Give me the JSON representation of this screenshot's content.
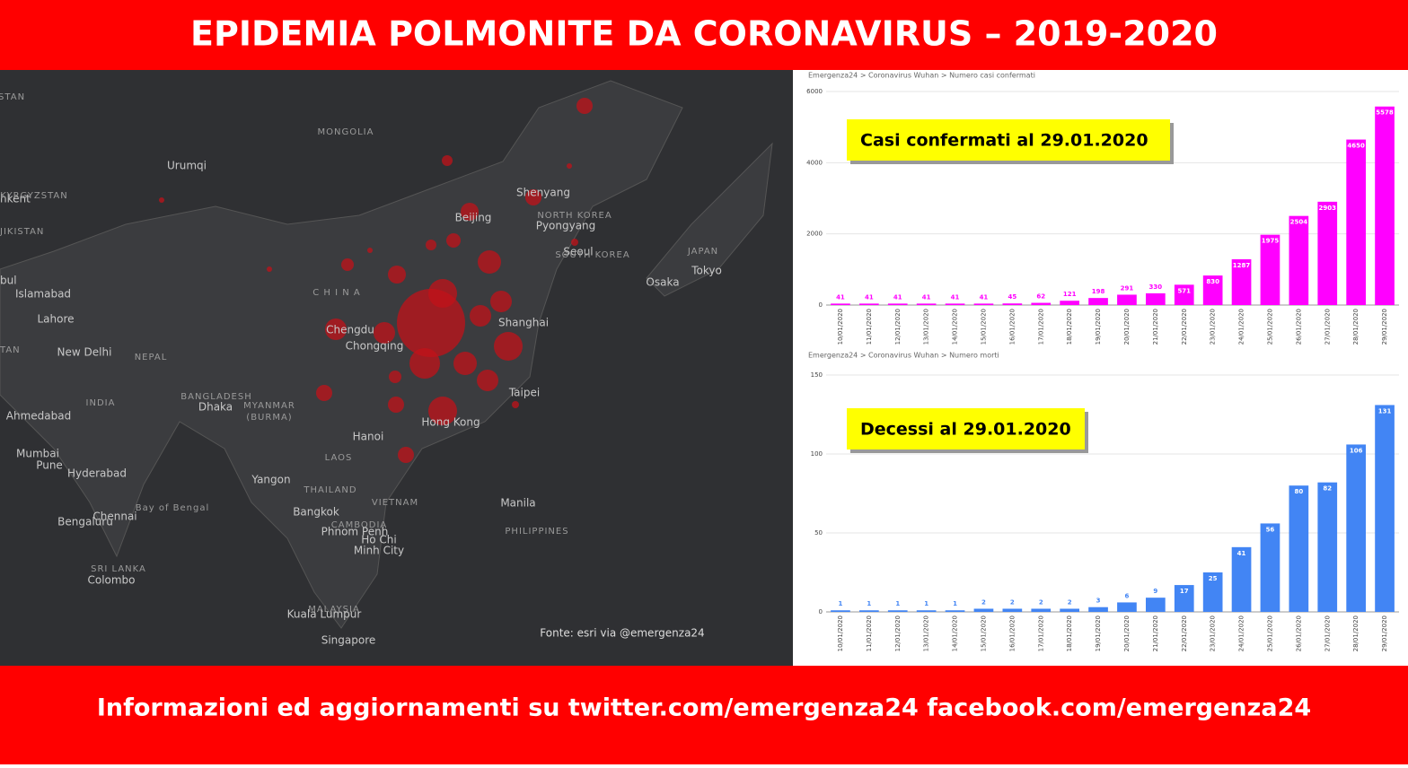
{
  "header": {
    "title": "EPIDEMIA POLMONITE DA CORONAVIRUS – 2019-2020"
  },
  "footer": {
    "text": "Informazioni ed aggiornamenti su twitter.com/emergenza24  facebook.com/emergenza24"
  },
  "map": {
    "labels": [
      "KHSTAN",
      "MONGOLIA",
      "Urumqi",
      "hkent",
      "KYRGYZSTAN",
      "JIKISTAN",
      "Shenyang",
      "Beijing",
      "NORTH KOREA",
      "Pyongyang",
      "Seoul",
      "SOUTH KOREA",
      "JAPAN",
      "Tokyo",
      "Osaka",
      "bul",
      "Islamabad",
      "C H I N A",
      "Lahore",
      "Chengdu",
      "Shanghai",
      "Chongqing",
      "TAN",
      "New Delhi",
      "NEPAL",
      "INDIA",
      "BANGLADESH",
      "MYANMAR",
      "(BURMA)",
      "Dhaka",
      "Taipei",
      "Ahmedabad",
      "Hong Kong",
      "Hanoi",
      "Mumbai",
      "Pune",
      "LAOS",
      "Hyderabad",
      "Yangon",
      "THAILAND",
      "VIETNAM",
      "Manila",
      "Bay of Bengal",
      "Chennai",
      "Bangkok",
      "Bengaluru",
      "CAMBODIA",
      "PHILIPPINES",
      "Phnom Penh",
      "Ho Chi",
      "Minh City",
      "SRI LANKA",
      "Colombo",
      "MALAYSIA",
      "Kuala Lumpur",
      "Singapore"
    ],
    "source": "Fonte: esri via @emergenza24"
  },
  "chart_data": [
    {
      "type": "bar",
      "title": "Emergenza24 > Coronavirus Wuhan > Numero casi confermati",
      "annotation": "Casi  confermati al 29.01.2020",
      "color": "#ff00ff",
      "categories": [
        "10/01/2020",
        "11/01/2020",
        "12/01/2020",
        "13/01/2020",
        "14/01/2020",
        "15/01/2020",
        "16/01/2020",
        "17/01/2020",
        "18/01/2020",
        "19/01/2020",
        "20/01/2020",
        "21/01/2020",
        "22/01/2020",
        "23/01/2020",
        "24/01/2020",
        "25/01/2020",
        "26/01/2020",
        "27/01/2020",
        "28/01/2020",
        "29/01/2020"
      ],
      "values": [
        41,
        41,
        41,
        41,
        41,
        41,
        45,
        62,
        121,
        198,
        291,
        330,
        571,
        830,
        1287,
        1975,
        2504,
        2903,
        4650,
        5578
      ],
      "ylim": [
        0,
        6000
      ],
      "yticks": [
        0,
        2000,
        4000,
        6000
      ],
      "grid": true
    },
    {
      "type": "bar",
      "title": "Emergenza24 > Coronavirus Wuhan > Numero morti",
      "annotation": "Decessi  al 29.01.2020",
      "color": "#4285f4",
      "categories": [
        "10/01/2020",
        "11/01/2020",
        "12/01/2020",
        "13/01/2020",
        "14/01/2020",
        "15/01/2020",
        "16/01/2020",
        "17/01/2020",
        "18/01/2020",
        "19/01/2020",
        "20/01/2020",
        "21/01/2020",
        "22/01/2020",
        "23/01/2020",
        "24/01/2020",
        "25/01/2020",
        "26/01/2020",
        "27/01/2020",
        "28/01/2020",
        "29/01/2020"
      ],
      "values": [
        1,
        1,
        1,
        1,
        1,
        2,
        2,
        2,
        2,
        3,
        6,
        9,
        17,
        25,
        41,
        56,
        80,
        82,
        106,
        131
      ],
      "ylim": [
        0,
        150
      ],
      "yticks": [
        0,
        50,
        100,
        150
      ],
      "grid": true
    }
  ]
}
